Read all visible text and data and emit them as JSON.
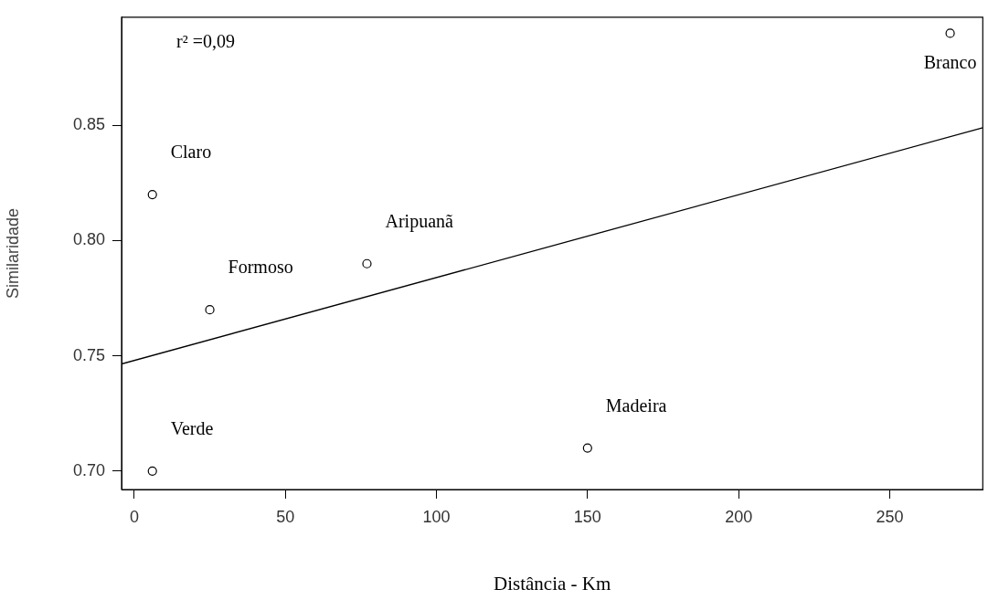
{
  "chart_data": {
    "type": "scatter",
    "xlabel": "Distância - Km",
    "ylabel": "Similaridade",
    "xlim": [
      -4.2,
      280.8
    ],
    "ylim": [
      0.692,
      0.897
    ],
    "xticks": [
      0,
      50,
      100,
      150,
      200,
      250
    ],
    "yticks": [
      {
        "value": 0.7,
        "label": "0.70"
      },
      {
        "value": 0.75,
        "label": "0.75"
      },
      {
        "value": 0.8,
        "label": "0.80"
      },
      {
        "value": 0.85,
        "label": "0.85"
      }
    ],
    "grid": false,
    "legend": false,
    "marker": "circle",
    "series": [
      {
        "color": "#000000",
        "x": [
          6,
          6,
          25,
          77,
          150,
          270
        ],
        "values": [
          0.7,
          0.82,
          0.77,
          0.79,
          0.71,
          0.89
        ]
      },
      {
        "type": "line",
        "color": "#000000",
        "x": [
          -4.2,
          280.8
        ],
        "values": [
          0.7465,
          0.849
        ],
        "marker": "none",
        "line_style": "solid"
      }
    ],
    "annotations": [
      "r² =0,09",
      {
        "text": "Verde",
        "x": 6,
        "y": 0.7
      },
      {
        "text": "Claro",
        "x": 6,
        "y": 0.82
      },
      {
        "text": "Formoso",
        "x": 25,
        "y": 0.77
      },
      {
        "text": "Aripuanã",
        "x": 77,
        "y": 0.79
      },
      {
        "text": "Madeira",
        "x": 150,
        "y": 0.71
      },
      {
        "text": "Branco",
        "x": 270,
        "y": 0.89
      }
    ]
  }
}
